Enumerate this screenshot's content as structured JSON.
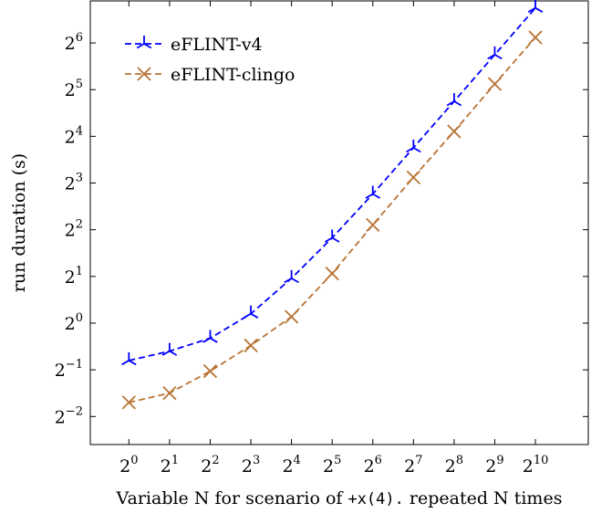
{
  "chart_data": {
    "type": "line",
    "title": "",
    "xlabel_prefix": "Variable N for scenario of ",
    "xlabel_code": "+x(4).",
    "xlabel_suffix": " repeated N times",
    "ylabel": "run duration (s)",
    "x_scale": "log2",
    "y_scale": "log2",
    "xlim_exp": [
      -0.95,
      11.3
    ],
    "ylim_exp": [
      -2.6,
      6.9
    ],
    "x_ticks": [
      {
        "base": "2",
        "exp": "0"
      },
      {
        "base": "2",
        "exp": "1"
      },
      {
        "base": "2",
        "exp": "2"
      },
      {
        "base": "2",
        "exp": "3"
      },
      {
        "base": "2",
        "exp": "4"
      },
      {
        "base": "2",
        "exp": "5"
      },
      {
        "base": "2",
        "exp": "6"
      },
      {
        "base": "2",
        "exp": "7"
      },
      {
        "base": "2",
        "exp": "8"
      },
      {
        "base": "2",
        "exp": "9"
      },
      {
        "base": "2",
        "exp": "10"
      }
    ],
    "y_ticks": [
      {
        "base": "2",
        "exp": "−2"
      },
      {
        "base": "2",
        "exp": "−1"
      },
      {
        "base": "2",
        "exp": "0"
      },
      {
        "base": "2",
        "exp": "1"
      },
      {
        "base": "2",
        "exp": "2"
      },
      {
        "base": "2",
        "exp": "3"
      },
      {
        "base": "2",
        "exp": "4"
      },
      {
        "base": "2",
        "exp": "5"
      },
      {
        "base": "2",
        "exp": "6"
      }
    ],
    "x": [
      1,
      2,
      4,
      8,
      16,
      32,
      64,
      128,
      256,
      512,
      1024
    ],
    "legend_position": "top-left",
    "grid": false,
    "series": [
      {
        "name": "eFLINT-v4",
        "color": "#0000ff",
        "marker": "tri-down",
        "values": [
          0.574,
          0.66,
          0.8,
          1.15,
          1.945,
          3.55,
          6.8,
          13.5,
          26.9,
          53.8,
          107.6
        ]
      },
      {
        "name": "eFLINT-clingo",
        "color": "#b87333",
        "marker": "x",
        "values": [
          0.308,
          0.354,
          0.49,
          0.718,
          1.1,
          2.09,
          4.3,
          8.7,
          17.2,
          34.8,
          69.5
        ]
      }
    ]
  }
}
